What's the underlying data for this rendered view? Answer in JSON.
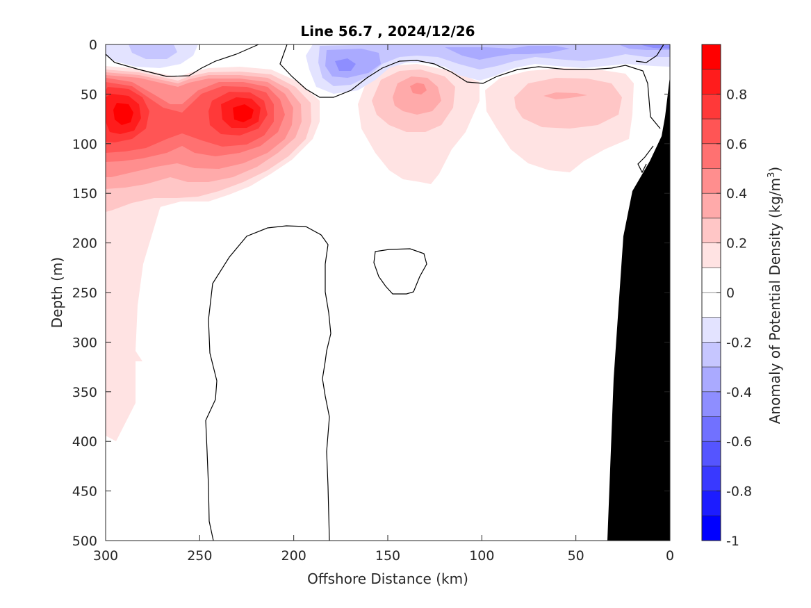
{
  "chart_data": {
    "type": "contour",
    "title": "Line 56.7 , 2024/12/26",
    "xlabel": "Offshore Distance (km)",
    "ylabel": "Depth (m)",
    "colorbar_label_main": "Anomaly of Potential Density (kg/m",
    "colorbar_label_sup": "3",
    "colorbar_label_end": ")",
    "xlim": [
      300,
      0
    ],
    "ylim": [
      0,
      500
    ],
    "x_reversed": true,
    "y_reversed": true,
    "x_ticks": [
      300,
      250,
      200,
      150,
      100,
      50,
      0
    ],
    "y_ticks": [
      0,
      50,
      100,
      150,
      200,
      250,
      300,
      350,
      400,
      450,
      500
    ],
    "colorbar": {
      "range": [
        -1,
        1
      ],
      "step": 0.1,
      "ticks": [
        0.8,
        0.6,
        0.4,
        0.2,
        0,
        -0.2,
        -0.4,
        -0.6,
        -0.8,
        -1
      ],
      "colors": {
        "1.0": "#ff0000",
        "0.9": "#ff1c1c",
        "0.8": "#ff3939",
        "0.7": "#ff5555",
        "0.6": "#ff7171",
        "0.5": "#ff8e8e",
        "0.4": "#ffaaaa",
        "0.3": "#ffc6c6",
        "0.2": "#ffe3e3",
        "0.1": "#ffffff",
        "0.0": "#ffffff",
        "-0.1": "#e3e3ff",
        "-0.2": "#c6c6ff",
        "-0.3": "#aaaaff",
        "-0.4": "#8e8eff",
        "-0.5": "#7171ff",
        "-0.6": "#5555ff",
        "-0.7": "#3939ff",
        "-0.8": "#1c1cff",
        "-0.9": "#0000ff"
      }
    },
    "features": [
      {
        "name": "nearshore positive anomaly core",
        "x": 291,
        "depth": 62,
        "peak": 0.9
      },
      {
        "name": "offshore positive anomaly core",
        "x": 222,
        "depth": 63,
        "peak": 0.9
      },
      {
        "name": "mid-section positive anomaly",
        "x": 136,
        "depth": 42,
        "peak": 0.5
      },
      {
        "name": "inshore positive anomaly",
        "x": 55,
        "depth": 50,
        "peak": 0.3
      },
      {
        "name": "surface negative anomaly",
        "x_range": [
          170,
          0
        ],
        "depth_range": [
          0,
          40
        ],
        "min": -0.5
      },
      {
        "name": "zero contour loop",
        "x_range": [
          245,
          180
        ],
        "depth_range": [
          183,
          500
        ]
      },
      {
        "name": "zero contour loop small",
        "x_range": [
          157,
          129
        ],
        "depth_range": [
          206,
          251
        ]
      }
    ],
    "bathymetry": {
      "color": "#000000",
      "bottom_depth_km_profile": [
        {
          "x": 33,
          "depth": 500
        },
        {
          "x": 30,
          "depth": 340
        },
        {
          "x": 25,
          "depth": 195
        },
        {
          "x": 20,
          "depth": 148
        },
        {
          "x": 10,
          "depth": 120
        },
        {
          "x": 4,
          "depth": 83
        },
        {
          "x": 0,
          "depth": 35
        }
      ]
    }
  }
}
